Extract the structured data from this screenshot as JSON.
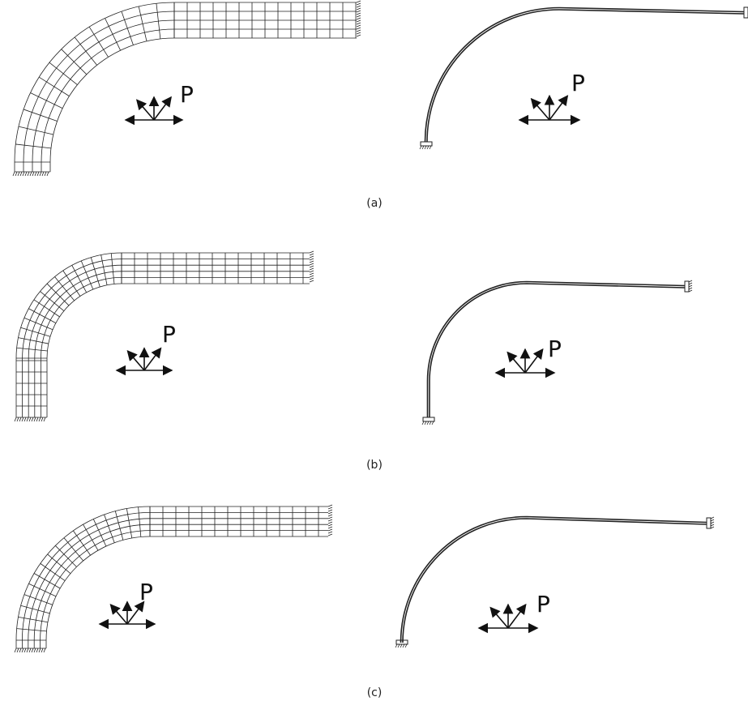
{
  "panels": [
    {
      "caption": "(a)",
      "left": {
        "load_label": "P"
      },
      "right": {
        "load_label": "P"
      }
    },
    {
      "caption": "(b)",
      "left": {
        "load_label": "P"
      },
      "right": {
        "load_label": "P"
      }
    },
    {
      "caption": "(c)",
      "left": {
        "load_label": "P"
      },
      "right": {
        "load_label": "P"
      }
    }
  ]
}
